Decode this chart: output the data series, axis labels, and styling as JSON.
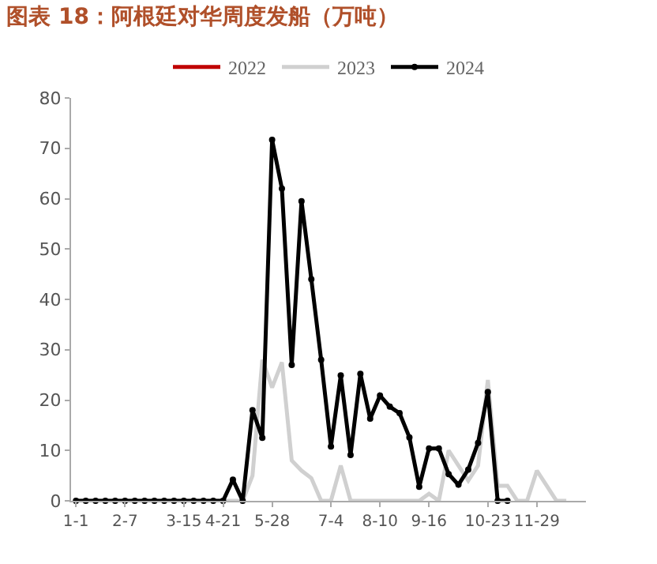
{
  "chart_data": {
    "type": "line",
    "title": "图表 18：阿根廷对华周度发船（万吨）",
    "categories": [
      "1-1",
      null,
      null,
      null,
      null,
      "2-7",
      null,
      null,
      null,
      null,
      null,
      "3-15",
      null,
      null,
      null,
      "4-21",
      null,
      null,
      null,
      null,
      "5-28",
      null,
      null,
      null,
      null,
      null,
      "7-4",
      null,
      null,
      null,
      null,
      "8-10",
      null,
      null,
      null,
      null,
      "9-16",
      null,
      null,
      null,
      null,
      null,
      "10-23",
      null,
      null,
      null,
      null,
      "11-29",
      null,
      null,
      null,
      null
    ],
    "series": [
      {
        "name": "2022",
        "color": "#c00000",
        "marker": "none",
        "values": [
          null,
          null,
          null,
          null,
          null,
          null,
          null,
          null,
          null,
          null,
          null,
          null,
          null,
          null,
          null,
          null,
          null,
          null,
          null,
          null,
          null,
          null,
          null,
          null,
          null,
          null,
          null,
          null,
          null,
          null,
          null,
          null,
          null,
          null,
          null,
          null,
          null,
          null,
          null,
          null,
          null,
          null,
          null,
          null,
          null,
          null,
          null,
          null,
          null,
          null,
          null,
          null
        ]
      },
      {
        "name": "2023",
        "color": "#d0d0d0",
        "marker": "none",
        "values": [
          0,
          0,
          0,
          0,
          0,
          0,
          0,
          0,
          0,
          0,
          0,
          0,
          0,
          0,
          0,
          0,
          0,
          0,
          5,
          28,
          22.5,
          27.5,
          8,
          6,
          4.5,
          0,
          0,
          7,
          0,
          0,
          0,
          0,
          0,
          0,
          0,
          0,
          1.4,
          0,
          10,
          7,
          4,
          7,
          24,
          3,
          3,
          0,
          0,
          6,
          3,
          0,
          0,
          null
        ]
      },
      {
        "name": "2024",
        "color": "#000000",
        "marker": "circle",
        "values": [
          0,
          0,
          0,
          0,
          0,
          0,
          0,
          0,
          0,
          0,
          0,
          0,
          0,
          0,
          0,
          0,
          4.2,
          0,
          18,
          12.5,
          71.7,
          62,
          27,
          59.5,
          44,
          28,
          10.8,
          24.9,
          9.1,
          25.2,
          16.3,
          20.9,
          18.7,
          17.4,
          12.6,
          2.8,
          10.4,
          10.4,
          5.3,
          3.2,
          6.2,
          11.5,
          21.6,
          0,
          0,
          null,
          null,
          null,
          null,
          null,
          null,
          null
        ]
      }
    ],
    "ylim": [
      0,
      80
    ],
    "yticks": [
      0,
      10,
      20,
      30,
      40,
      50,
      60,
      70,
      80
    ],
    "legend": "top",
    "line_style": "solid"
  }
}
